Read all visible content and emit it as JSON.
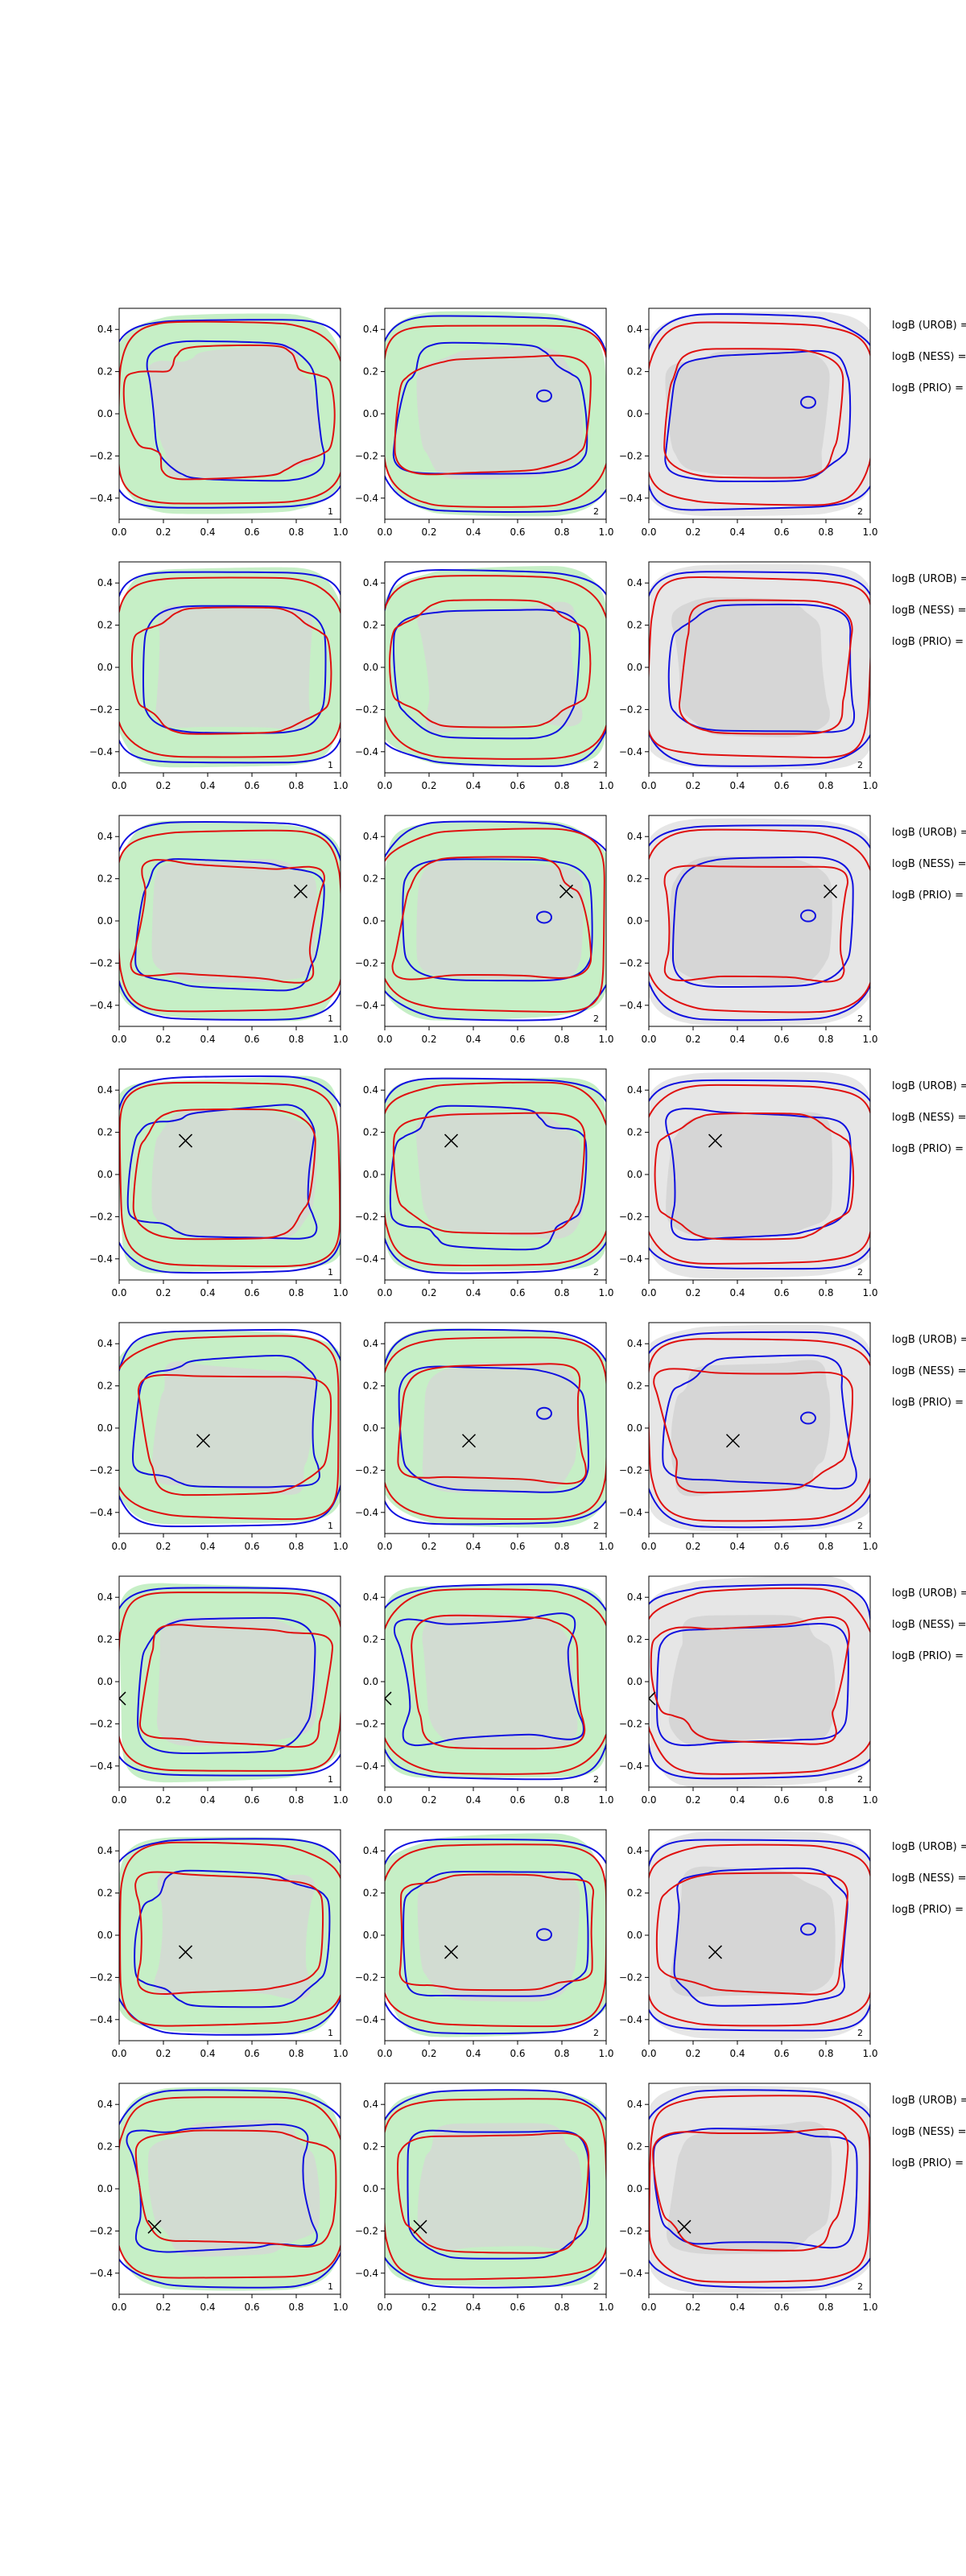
{
  "chart_data": {
    "type": "contour",
    "xlim": [
      0.0,
      1.0
    ],
    "ylim": [
      -0.5,
      0.5
    ],
    "x_ticks": [
      "0.0",
      "0.2",
      "0.4",
      "0.6",
      "0.8",
      "1.0"
    ],
    "y_ticks": [
      "-0.4",
      "-0.2",
      "0.0",
      "0.2",
      "0.4"
    ],
    "grid": false,
    "colors": {
      "contour_a": "#1010e0",
      "contour_b": "#e01010",
      "fill_green": "#c6efc6",
      "fill_grey": "#d6d6d6",
      "fill_lightgrey": "#e6e6e6",
      "marker": "#000000"
    },
    "panel_labels": [
      "1",
      "2",
      "2"
    ],
    "row_labels": [
      "logB (UROB) =",
      "logB (NESS) =",
      "logB (PRIO) ="
    ],
    "rows": [
      {
        "marker": null
      },
      {
        "marker": null
      },
      {
        "marker": {
          "x": 0.82,
          "y": 0.14
        }
      },
      {
        "marker": {
          "x": 0.3,
          "y": 0.16
        }
      },
      {
        "marker": {
          "x": 0.38,
          "y": -0.06
        }
      },
      {
        "marker": {
          "x": 0.0,
          "y": -0.08
        }
      },
      {
        "marker": {
          "x": 0.3,
          "y": -0.08
        }
      },
      {
        "marker": {
          "x": 0.16,
          "y": -0.18
        }
      }
    ]
  }
}
